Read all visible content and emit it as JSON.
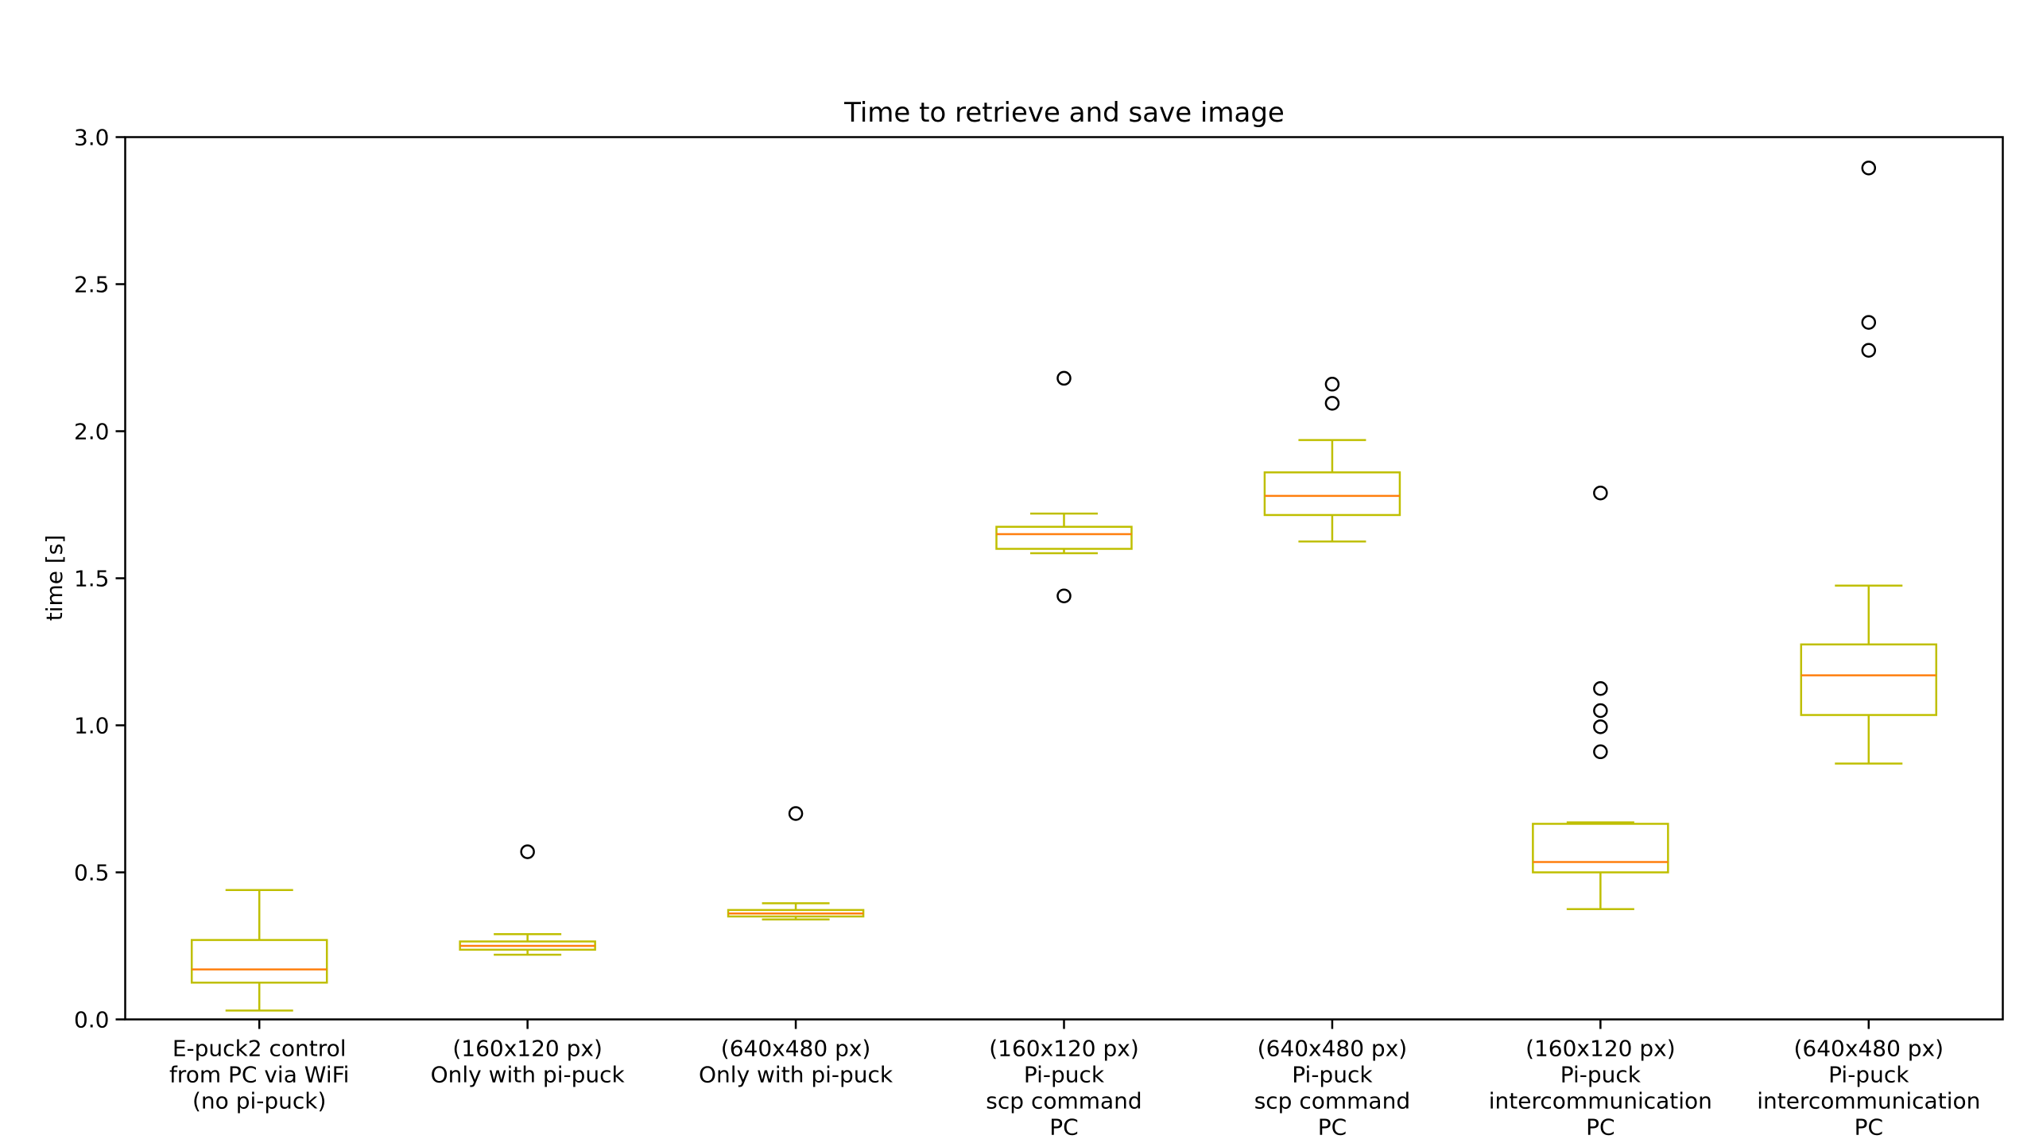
{
  "chart_data": {
    "type": "box",
    "title": "Time to retrieve and save image",
    "xlabel": "",
    "ylabel": "time [s]",
    "ylim": [
      0,
      3.0
    ],
    "yticks": [
      "0.0",
      "0.5",
      "1.0",
      "1.5",
      "2.0",
      "2.5",
      "3.0"
    ],
    "grid": false,
    "colors": {
      "box": "#bfbf00",
      "median": "#ff7f0e",
      "flier": "#000000",
      "axis": "#000000"
    },
    "boxes": [
      {
        "label": [
          "E-puck2 control",
          "from PC via WiFi",
          "(no pi-puck)"
        ],
        "whislo": 0.03,
        "q1": 0.125,
        "med": 0.17,
        "q3": 0.27,
        "whishi": 0.44,
        "fliers": []
      },
      {
        "label": [
          "(160x120 px)",
          "Only with pi-puck"
        ],
        "whislo": 0.22,
        "q1": 0.237,
        "med": 0.25,
        "q3": 0.265,
        "whishi": 0.29,
        "fliers": [
          0.57
        ]
      },
      {
        "label": [
          "(640x480 px)",
          "Only with pi-puck"
        ],
        "whislo": 0.34,
        "q1": 0.35,
        "med": 0.36,
        "q3": 0.372,
        "whishi": 0.395,
        "fliers": [
          0.7
        ]
      },
      {
        "label": [
          "(160x120 px)",
          "Pi-puck",
          "scp command",
          "PC"
        ],
        "whislo": 1.585,
        "q1": 1.6,
        "med": 1.65,
        "q3": 1.675,
        "whishi": 1.72,
        "fliers": [
          2.18,
          1.44
        ]
      },
      {
        "label": [
          "(640x480 px)",
          "Pi-puck",
          "scp command",
          "PC"
        ],
        "whislo": 1.625,
        "q1": 1.715,
        "med": 1.78,
        "q3": 1.86,
        "whishi": 1.97,
        "fliers": [
          2.16,
          2.095
        ]
      },
      {
        "label": [
          "(160x120 px)",
          "Pi-puck",
          "intercommunication",
          "PC"
        ],
        "whislo": 0.375,
        "q1": 0.5,
        "med": 0.535,
        "q3": 0.665,
        "whishi": 0.67,
        "fliers": [
          1.79,
          1.125,
          1.05,
          0.995,
          0.91
        ]
      },
      {
        "label": [
          "(640x480 px)",
          "Pi-puck",
          "intercommunication",
          "PC"
        ],
        "whislo": 0.87,
        "q1": 1.035,
        "med": 1.17,
        "q3": 1.275,
        "whishi": 1.475,
        "fliers": [
          2.895,
          2.37,
          2.275
        ]
      }
    ]
  }
}
